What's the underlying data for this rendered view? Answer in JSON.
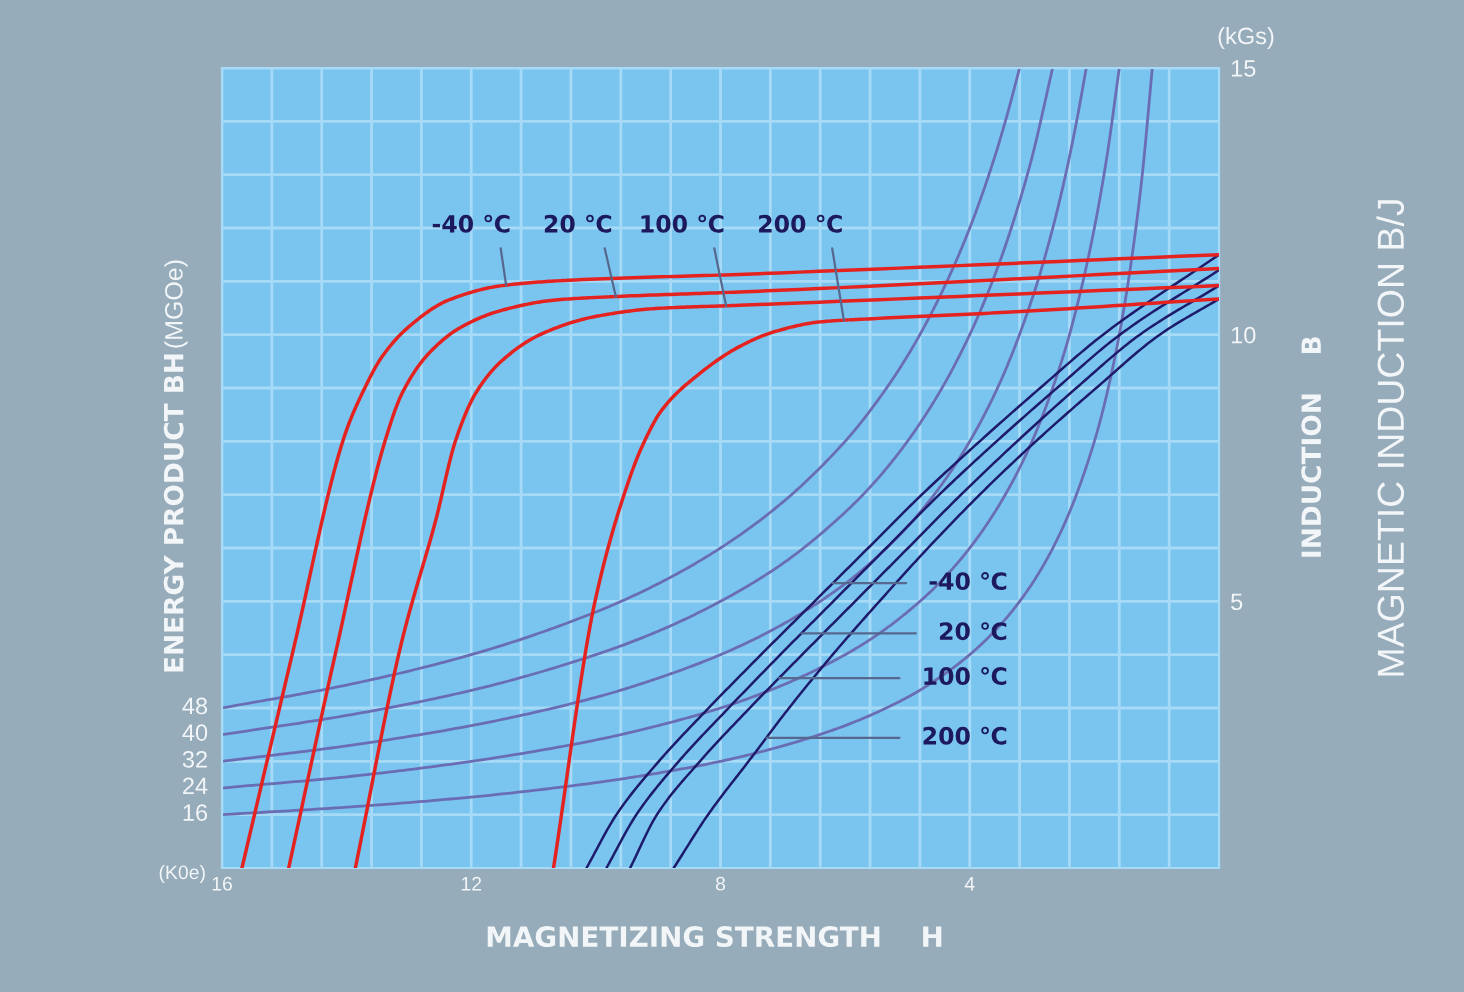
{
  "chart_data": {
    "type": "line",
    "xlabel": "MAGNETIZING STRENGTH    H",
    "ylabel": "INDUCTION    B",
    "annotations": [
      "ENERGY PRODUCT BH",
      "(MGOe)",
      "(kGs)",
      "(K0e)",
      "MAGNETIC INDUCTION B/J",
      {
        "text": "-40 ℃",
        "x": 6.2,
        "y": 5.34
      },
      {
        "text": "20 ℃",
        "x": 6.7,
        "y": 4.4
      },
      {
        "text": "100 ℃",
        "x": 7.06,
        "y": 3.56
      },
      {
        "text": "200 ℃",
        "x": 7.26,
        "y": 2.44
      }
    ],
    "xlim": [
      16,
      0
    ],
    "ylim": [
      0,
      15
    ],
    "xticks": [
      16,
      {
        "value": 15.2,
        "label": null
      },
      {
        "value": 14.4,
        "label": null
      },
      {
        "value": 13.6,
        "label": null
      },
      {
        "value": 12.8,
        "label": null
      },
      12,
      {
        "value": 11.2,
        "label": null
      },
      {
        "value": 10.4,
        "label": null
      },
      {
        "value": 9.6,
        "label": null
      },
      {
        "value": 8.8,
        "label": null
      },
      8,
      {
        "value": 7.2,
        "label": null
      },
      {
        "value": 6.4,
        "label": null
      },
      {
        "value": 5.6,
        "label": null
      },
      {
        "value": 4.8,
        "label": null
      },
      4,
      {
        "value": 3.2,
        "label": null
      },
      {
        "value": 2.4,
        "label": null
      },
      {
        "value": 1.6,
        "label": null
      },
      {
        "value": 0.8,
        "label": null
      }
    ],
    "yticks": [
      {
        "value": 1,
        "label": null
      },
      {
        "value": 2,
        "label": null
      },
      {
        "value": 3,
        "label": null
      },
      {
        "value": 4,
        "label": null
      },
      5,
      {
        "value": 6,
        "label": null
      },
      {
        "value": 7,
        "label": null
      },
      {
        "value": 8,
        "label": null
      },
      {
        "value": 9,
        "label": null
      },
      10,
      {
        "value": 11,
        "label": null
      },
      {
        "value": 12,
        "label": null
      },
      {
        "value": 13,
        "label": null
      },
      {
        "value": 14,
        "label": null
      },
      15
    ],
    "grid": true,
    "series": [
      {
        "name": "48",
        "color": "#6a6db3",
        "x": [
          16,
          14,
          12,
          10,
          9,
          8,
          7,
          6,
          5.5,
          5,
          4.5,
          4,
          3.6,
          3.4,
          3.2
        ],
        "values": [
          3,
          3.43,
          4,
          4.8,
          5.33,
          6,
          6.86,
          8,
          8.73,
          9.6,
          10.67,
          12,
          13.33,
          14.12,
          15
        ]
      },
      {
        "name": "40",
        "color": "#6a6db3",
        "x": [
          16,
          14,
          12,
          10,
          9,
          8,
          7,
          6,
          5.5,
          5,
          4.5,
          4,
          3.6,
          3.3,
          3,
          2.67
        ],
        "values": [
          2.5,
          2.86,
          3.33,
          4,
          4.44,
          5,
          5.71,
          6.67,
          7.27,
          8,
          8.89,
          10,
          11.11,
          12.12,
          13.33,
          15
        ]
      },
      {
        "name": "32",
        "color": "#6a6db3",
        "x": [
          16,
          14,
          12,
          10,
          9,
          8,
          7,
          6,
          5.5,
          5,
          4.5,
          4,
          3.5,
          3,
          2.75,
          2.5,
          2.3,
          2.13
        ],
        "values": [
          2,
          2.29,
          2.67,
          3.2,
          3.56,
          4,
          4.57,
          5.33,
          5.82,
          6.4,
          7.11,
          8,
          9.14,
          10.67,
          11.64,
          12.8,
          13.91,
          15
        ]
      },
      {
        "name": "24",
        "color": "#6a6db3",
        "x": [
          16,
          14,
          12,
          10,
          9,
          8,
          7,
          6,
          5.5,
          5,
          4.5,
          4,
          3.5,
          3,
          2.5,
          2.25,
          2,
          1.8,
          1.6
        ],
        "values": [
          1.5,
          1.71,
          2,
          2.4,
          2.67,
          3,
          3.43,
          4,
          4.36,
          4.8,
          5.33,
          6,
          6.86,
          8,
          9.6,
          10.67,
          12,
          13.33,
          15
        ]
      },
      {
        "name": "16",
        "color": "#6a6db3",
        "x": [
          16,
          14,
          12,
          10,
          9,
          8,
          7,
          6,
          5,
          4.5,
          4,
          3.5,
          3,
          2.5,
          2,
          1.75,
          1.5,
          1.25,
          1.07
        ],
        "values": [
          1,
          1.14,
          1.33,
          1.6,
          1.78,
          2,
          2.29,
          2.67,
          3.2,
          3.56,
          4,
          4.57,
          5.33,
          6.4,
          8,
          9.14,
          10.67,
          12.8,
          15
        ]
      },
      {
        "name": "-40 ℃",
        "color": "#e42320",
        "x": [
          15.68,
          14.87,
          14.02,
          13.75,
          13.43,
          13.0,
          12.36,
          11.5,
          10.44,
          7.7,
          0
        ],
        "values": [
          0,
          4.02,
          8.15,
          8.9,
          9.59,
          10.15,
          10.65,
          10.92,
          11.02,
          11.13,
          11.5
        ]
      },
      {
        "name": "20 ℃",
        "color": "#e42320",
        "x": [
          14.93,
          14.18,
          13.38,
          13.11,
          12.68,
          12.15,
          11.5,
          10.65,
          9.58,
          7.7,
          0
        ],
        "values": [
          0,
          4.02,
          8.02,
          8.9,
          9.65,
          10.15,
          10.46,
          10.65,
          10.72,
          10.8,
          11.24
        ]
      },
      {
        "name": "100 ℃",
        "color": "#e42320",
        "x": [
          13.86,
          13.11,
          12.57,
          12.25,
          11.93,
          11.5,
          10.86,
          10.01,
          9.04,
          7.7,
          0
        ],
        "values": [
          0,
          4.27,
          6.52,
          8.02,
          8.9,
          9.52,
          10.02,
          10.34,
          10.49,
          10.55,
          10.92
        ]
      },
      {
        "name": "200 ℃",
        "color": "#e42320",
        "x": [
          10.68,
          10.01,
          9.47,
          9.26,
          8.94,
          8.4,
          7.69,
          7.15,
          6.4,
          5.55,
          3.41,
          0
        ],
        "values": [
          0,
          5.02,
          7.27,
          7.9,
          8.59,
          9.21,
          9.78,
          10.05,
          10.24,
          10.3,
          10.42,
          10.67
        ]
      },
      {
        "color": "#1e1b6b",
        "x": [
          10.15,
          9.67,
          8.99,
          8.19,
          7.35,
          6.49,
          5.63,
          4.77,
          3.84,
          2.87,
          1.86,
          0
        ],
        "values": [
          0,
          1,
          2,
          3,
          4,
          5,
          6,
          7,
          8,
          9,
          10,
          11.5
        ]
      },
      {
        "color": "#1e1b6b",
        "x": [
          9.83,
          9.35,
          8.67,
          7.87,
          7.04,
          6.19,
          5.34,
          4.49,
          3.57,
          2.6,
          1.59,
          0
        ],
        "values": [
          0,
          1,
          2,
          3,
          4,
          5,
          6,
          7,
          8,
          9,
          10,
          11.21
        ]
      },
      {
        "color": "#1e1b6b",
        "x": [
          9.45,
          9.02,
          8.33,
          7.53,
          6.69,
          5.84,
          4.99,
          4.14,
          3.24,
          2.29,
          1.27,
          0
        ],
        "values": [
          0,
          1,
          2,
          3,
          4,
          5,
          6,
          7,
          8,
          9,
          10,
          10.92
        ]
      },
      {
        "color": "#1e1b6b",
        "x": [
          8.75,
          8.2,
          7.55,
          6.9,
          6.2,
          5.45,
          4.67,
          3.84,
          2.94,
          1.97,
          0.95,
          0
        ],
        "values": [
          0,
          1,
          2,
          3,
          4,
          5,
          6,
          7,
          8,
          9,
          10,
          10.67
        ]
      }
    ]
  }
}
